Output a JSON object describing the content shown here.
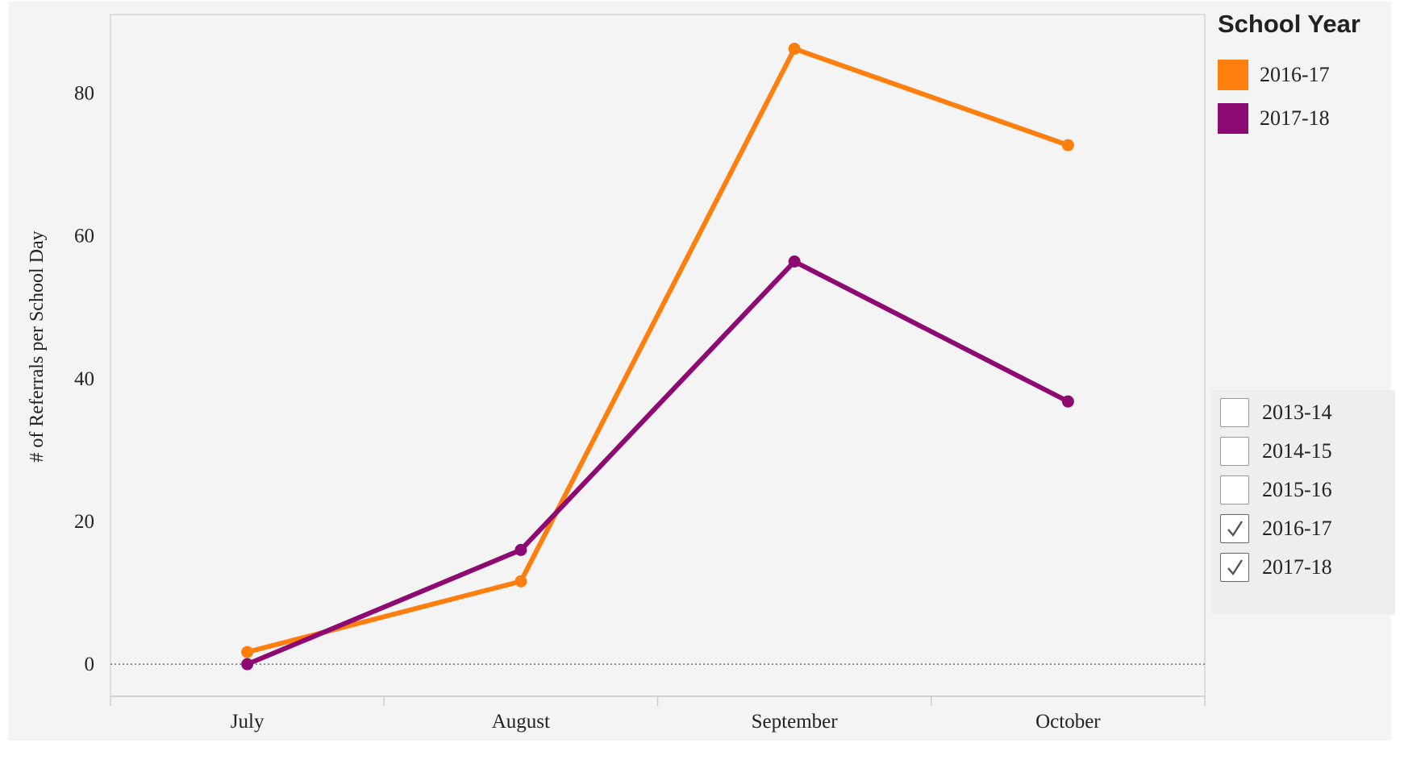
{
  "chart_data": {
    "type": "line",
    "categories": [
      "July",
      "August",
      "September",
      "October"
    ],
    "series": [
      {
        "name": "2016-17",
        "color": "#ff7f0e",
        "values": [
          1.7,
          11.6,
          86.2,
          72.7
        ]
      },
      {
        "name": "2017-18",
        "color": "#8e0a73",
        "values": [
          0,
          16.0,
          56.4,
          36.8
        ]
      }
    ],
    "ylabel": "# of Referrals per School Day",
    "xlabel": "",
    "ylim": [
      -4.5,
      91
    ],
    "yticks": [
      0,
      20,
      40,
      60,
      80
    ],
    "zero_line": true,
    "grid": false,
    "legend_position": "right"
  },
  "legend": {
    "title": "School Year",
    "items": [
      {
        "label": "2016-17",
        "color": "#ff7f0e"
      },
      {
        "label": "2017-18",
        "color": "#8e0a73"
      }
    ]
  },
  "filter": {
    "items": [
      {
        "label": "2013-14",
        "checked": false
      },
      {
        "label": "2014-15",
        "checked": false
      },
      {
        "label": "2015-16",
        "checked": false
      },
      {
        "label": "2016-17",
        "checked": true
      },
      {
        "label": "2017-18",
        "checked": true
      }
    ]
  }
}
